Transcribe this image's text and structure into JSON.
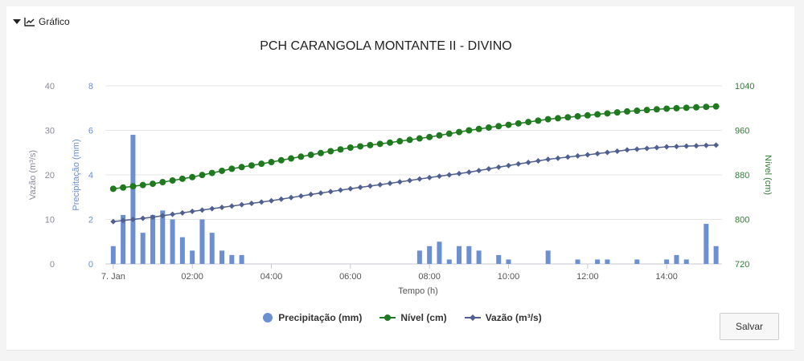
{
  "header": {
    "toggle_label": "Gráfico"
  },
  "actions": {
    "save_label": "Salvar"
  },
  "chart_data": {
    "type": "bar+line",
    "title": "PCH CARANGOLA MONTANTE II - DIVINO",
    "xlabel": "Tempo (h)",
    "x_ticks": [
      "7. Jan",
      "02:00",
      "04:00",
      "06:00",
      "08:00",
      "10:00",
      "12:00",
      "14:00"
    ],
    "x_unit": "hours from 7. Jan 00:00",
    "x_range": [
      -0.2,
      15.4
    ],
    "axes": {
      "precipitacao": {
        "label": "Precipitação (mm)",
        "range": [
          0,
          8
        ],
        "ticks": [
          0,
          2,
          4,
          6,
          8
        ],
        "color": "#6b8fd0"
      },
      "vazao": {
        "label": "Vazão (m³/s)",
        "range": [
          0,
          40
        ],
        "ticks": [
          0,
          10,
          20,
          30,
          40
        ],
        "color": "#8a8a9a"
      },
      "nivel": {
        "label": "Nível (cm)",
        "range": [
          720,
          1040
        ],
        "ticks": [
          720,
          800,
          880,
          960,
          1040
        ],
        "color": "#2e7d32"
      }
    },
    "series": [
      {
        "name": "Precipitação (mm)",
        "type": "bar",
        "axis": "precipitacao",
        "color": "#6b8fd0",
        "x": [
          0.0,
          0.25,
          0.5,
          0.75,
          1.0,
          1.25,
          1.5,
          1.75,
          2.0,
          2.25,
          2.5,
          2.75,
          3.0,
          3.25,
          7.75,
          8.0,
          8.25,
          8.5,
          8.75,
          9.0,
          9.25,
          9.75,
          10.0,
          11.0,
          11.75,
          12.25,
          12.5,
          13.25,
          14.0,
          14.25,
          14.5,
          15.0,
          15.25
        ],
        "values": [
          0.8,
          2.2,
          5.8,
          1.4,
          2.2,
          2.4,
          2.0,
          1.2,
          0.6,
          2.0,
          1.4,
          0.6,
          0.4,
          0.4,
          0.6,
          0.8,
          1.0,
          0.2,
          0.8,
          0.8,
          0.6,
          0.4,
          0.2,
          0.6,
          0.2,
          0.2,
          0.2,
          0.2,
          0.2,
          0.4,
          0.2,
          1.8,
          0.8
        ]
      },
      {
        "name": "Nível (cm)",
        "type": "line",
        "axis": "nivel",
        "color": "#1f7a1f",
        "marker": "circle",
        "x": [
          0,
          1,
          2,
          3,
          4,
          5,
          6,
          7,
          8,
          9,
          10,
          11,
          12,
          13,
          14,
          15.25
        ],
        "values": [
          855,
          864,
          876,
          891,
          903,
          916,
          929,
          938,
          948,
          960,
          970,
          980,
          987,
          994,
          999,
          1003
        ]
      },
      {
        "name": "Vazão (m³/s)",
        "type": "line",
        "axis": "vazao",
        "color": "#4f5f8f",
        "marker": "diamond",
        "x": [
          0,
          1,
          2,
          3,
          4,
          5,
          6,
          7,
          8,
          9,
          10,
          11,
          12,
          13,
          14,
          15.25
        ],
        "values": [
          9.5,
          10.5,
          11.8,
          13.0,
          14.2,
          15.6,
          16.9,
          18.1,
          19.4,
          20.6,
          22.1,
          23.5,
          24.5,
          25.6,
          26.3,
          26.7
        ]
      }
    ],
    "legend": [
      "Precipitação (mm)",
      "Nível (cm)",
      "Vazão (m³/s)"
    ],
    "legend_position": "bottom",
    "grid": true
  }
}
